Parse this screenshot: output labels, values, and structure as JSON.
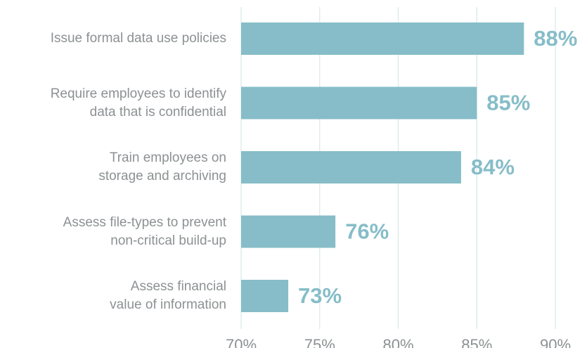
{
  "chart_data": {
    "type": "bar",
    "categories": [
      "Issue formal data use policies",
      "Require employees to identify\ndata that is confidential",
      "Train employees on\nstorage and archiving",
      "Assess file-types to prevent\nnon-critical build-up",
      "Assess financial\nvalue of information"
    ],
    "values": [
      88,
      85,
      84,
      76,
      73
    ],
    "value_labels": [
      "88%",
      "85%",
      "84%",
      "76%",
      "73%"
    ],
    "color": "#86bdc8",
    "xlim": [
      70,
      90
    ],
    "xticks": [
      {
        "value": 70,
        "label": "70%"
      },
      {
        "value": 75,
        "label": "75%"
      },
      {
        "value": 80,
        "label": "80%"
      },
      {
        "value": 85,
        "label": "85%"
      },
      {
        "value": 90,
        "label": "90%"
      }
    ],
    "grid": true
  }
}
